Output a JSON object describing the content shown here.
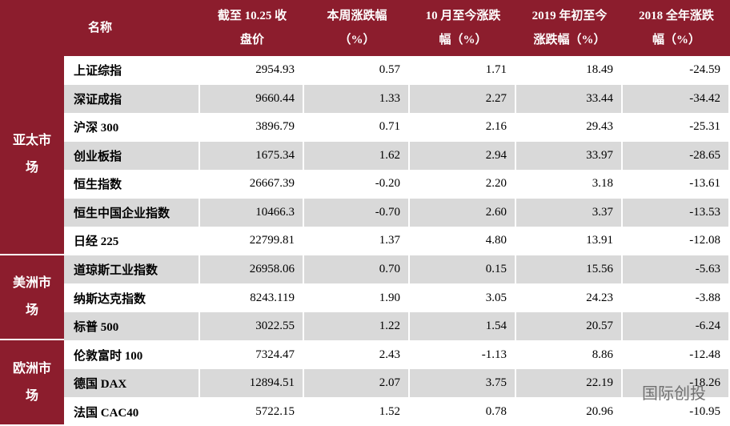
{
  "table": {
    "header": [
      [
        "名称"
      ],
      [
        "截至 10.25 收",
        "盘价"
      ],
      [
        "本周涨跌幅",
        "（%）"
      ],
      [
        "10 月至今涨跌",
        "幅（%）"
      ],
      [
        "2019 年初至今",
        "涨跌幅（%）"
      ],
      [
        "2018 全年涨跌",
        "幅（%）"
      ]
    ],
    "groups": [
      {
        "label": "亚太市场",
        "rows": [
          [
            "上证综指",
            "2954.93",
            "0.57",
            "1.71",
            "18.49",
            "-24.59"
          ],
          [
            "深证成指",
            "9660.44",
            "1.33",
            "2.27",
            "33.44",
            "-34.42"
          ],
          [
            "沪深 300",
            "3896.79",
            "0.71",
            "2.16",
            "29.43",
            "-25.31"
          ],
          [
            "创业板指",
            "1675.34",
            "1.62",
            "2.94",
            "33.97",
            "-28.65"
          ],
          [
            "恒生指数",
            "26667.39",
            "-0.20",
            "2.20",
            "3.18",
            "-13.61"
          ],
          [
            "恒生中国企业指数",
            "10466.3",
            "-0.70",
            "2.60",
            "3.37",
            "-13.53"
          ],
          [
            "日经 225",
            "22799.81",
            "1.37",
            "4.80",
            "13.91",
            "-12.08"
          ]
        ]
      },
      {
        "label": "美洲市场",
        "rows": [
          [
            "道琼斯工业指数",
            "26958.06",
            "0.70",
            "0.15",
            "15.56",
            "-5.63"
          ],
          [
            "纳斯达克指数",
            "8243.119",
            "1.90",
            "3.05",
            "24.23",
            "-3.88"
          ],
          [
            "标普 500",
            "3022.55",
            "1.22",
            "1.54",
            "20.57",
            "-6.24"
          ]
        ]
      },
      {
        "label": "欧洲市场",
        "rows": [
          [
            "伦敦富时 100",
            "7324.47",
            "2.43",
            "-1.13",
            "8.86",
            "-12.48"
          ],
          [
            "德国 DAX",
            "12894.51",
            "2.07",
            "3.75",
            "22.19",
            "-18.26"
          ],
          [
            "法国 CAC40",
            "5722.15",
            "1.52",
            "0.78",
            "20.96",
            "-10.95"
          ]
        ]
      }
    ]
  },
  "watermark": "国际创投"
}
